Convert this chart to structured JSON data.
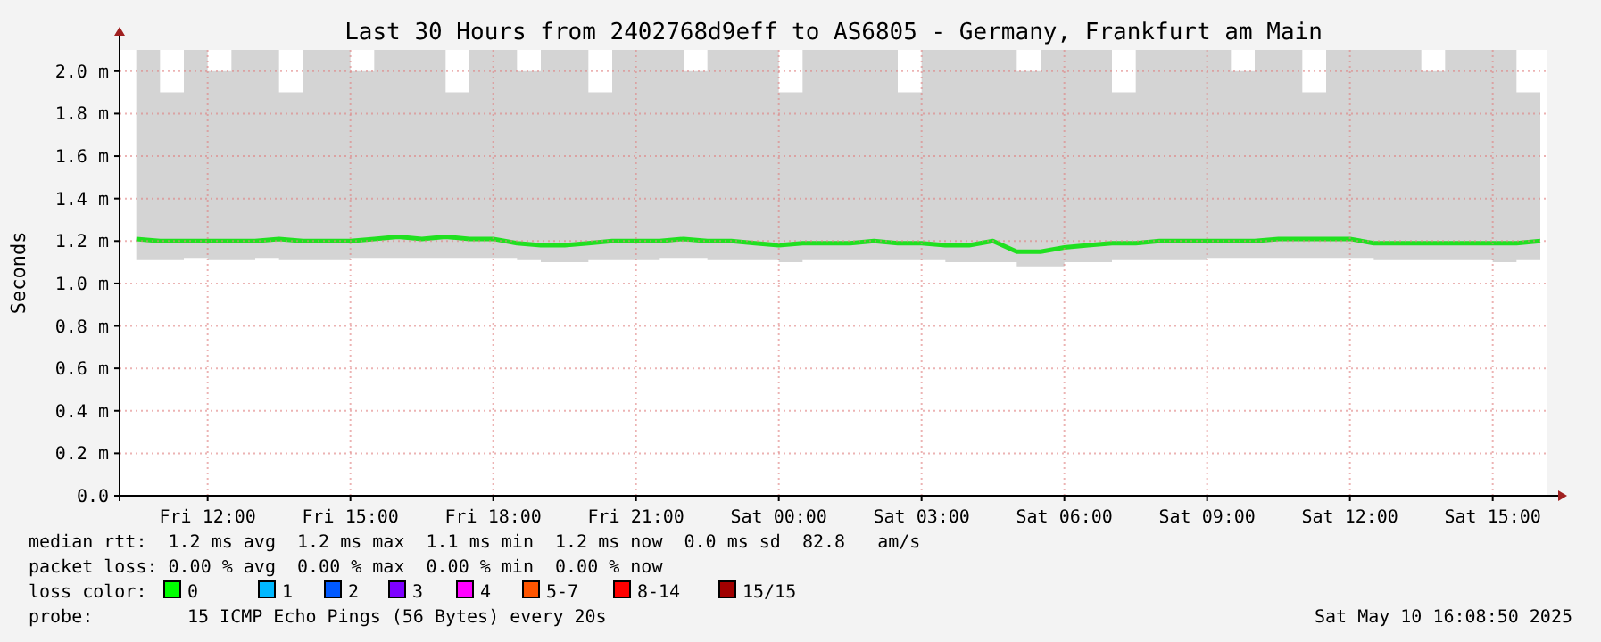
{
  "chart_data": {
    "type": "line",
    "title": "Last 30 Hours from 2402768d9eff to AS6805 - Germany, Frankfurt am Main",
    "ylabel": "Seconds",
    "x": [
      "2025-05-09T10:30",
      "2025-05-09T11:00",
      "2025-05-09T11:30",
      "2025-05-09T12:00",
      "2025-05-09T12:30",
      "2025-05-09T13:00",
      "2025-05-09T13:30",
      "2025-05-09T14:00",
      "2025-05-09T14:30",
      "2025-05-09T15:00",
      "2025-05-09T15:30",
      "2025-05-09T16:00",
      "2025-05-09T16:30",
      "2025-05-09T17:00",
      "2025-05-09T17:30",
      "2025-05-09T18:00",
      "2025-05-09T18:30",
      "2025-05-09T19:00",
      "2025-05-09T19:30",
      "2025-05-09T20:00",
      "2025-05-09T20:30",
      "2025-05-09T21:00",
      "2025-05-09T21:30",
      "2025-05-09T22:00",
      "2025-05-09T22:30",
      "2025-05-09T23:00",
      "2025-05-09T23:30",
      "2025-05-10T00:00",
      "2025-05-10T00:30",
      "2025-05-10T01:00",
      "2025-05-10T01:30",
      "2025-05-10T02:00",
      "2025-05-10T02:30",
      "2025-05-10T03:00",
      "2025-05-10T03:30",
      "2025-05-10T04:00",
      "2025-05-10T04:30",
      "2025-05-10T05:00",
      "2025-05-10T05:30",
      "2025-05-10T06:00",
      "2025-05-10T06:30",
      "2025-05-10T07:00",
      "2025-05-10T07:30",
      "2025-05-10T08:00",
      "2025-05-10T08:30",
      "2025-05-10T09:00",
      "2025-05-10T09:30",
      "2025-05-10T10:00",
      "2025-05-10T10:30",
      "2025-05-10T11:00",
      "2025-05-10T11:30",
      "2025-05-10T12:00",
      "2025-05-10T12:30",
      "2025-05-10T13:00",
      "2025-05-10T13:30",
      "2025-05-10T14:00",
      "2025-05-10T14:30",
      "2025-05-10T15:00",
      "2025-05-10T15:30",
      "2025-05-10T16:00"
    ],
    "series": [
      {
        "color": "#20e020",
        "values": [
          1.21,
          1.2,
          1.2,
          1.2,
          1.2,
          1.2,
          1.21,
          1.2,
          1.2,
          1.2,
          1.21,
          1.22,
          1.21,
          1.22,
          1.21,
          1.21,
          1.19,
          1.18,
          1.18,
          1.19,
          1.2,
          1.2,
          1.2,
          1.21,
          1.2,
          1.2,
          1.19,
          1.18,
          1.19,
          1.19,
          1.19,
          1.2,
          1.19,
          1.19,
          1.18,
          1.18,
          1.2,
          1.15,
          1.15,
          1.17,
          1.18,
          1.19,
          1.19,
          1.2,
          1.2,
          1.2,
          1.2,
          1.2,
          1.21,
          1.21,
          1.21,
          1.21,
          1.19,
          1.19,
          1.19,
          1.19,
          1.19,
          1.19,
          1.19,
          1.2
        ],
        "lower": [
          1.11,
          1.11,
          1.12,
          1.11,
          1.11,
          1.12,
          1.11,
          1.11,
          1.11,
          1.12,
          1.12,
          1.12,
          1.12,
          1.12,
          1.12,
          1.12,
          1.11,
          1.1,
          1.1,
          1.11,
          1.11,
          1.11,
          1.12,
          1.12,
          1.11,
          1.11,
          1.11,
          1.1,
          1.11,
          1.11,
          1.11,
          1.11,
          1.11,
          1.11,
          1.1,
          1.1,
          1.1,
          1.08,
          1.08,
          1.1,
          1.1,
          1.11,
          1.11,
          1.11,
          1.11,
          1.12,
          1.12,
          1.12,
          1.12,
          1.12,
          1.12,
          1.12,
          1.11,
          1.11,
          1.11,
          1.11,
          1.11,
          1.1,
          1.11,
          1.11
        ],
        "upper": [
          2.1,
          1.9,
          2.1,
          2.0,
          2.1,
          2.1,
          1.9,
          2.1,
          2.1,
          2.0,
          2.1,
          2.1,
          2.1,
          1.9,
          2.1,
          2.1,
          2.0,
          2.1,
          2.1,
          1.9,
          2.1,
          2.1,
          2.1,
          2.0,
          2.1,
          2.1,
          2.1,
          1.9,
          2.1,
          2.1,
          2.1,
          2.1,
          1.9,
          2.1,
          2.1,
          2.1,
          2.1,
          2.0,
          2.1,
          2.1,
          2.1,
          1.9,
          2.1,
          2.1,
          2.1,
          2.1,
          2.0,
          2.1,
          2.1,
          1.9,
          2.1,
          2.1,
          2.1,
          2.1,
          2.0,
          2.1,
          2.1,
          2.1,
          1.9,
          2.1
        ]
      }
    ],
    "xlim": [
      "2025-05-09T10:09",
      "2025-05-10T16:09"
    ],
    "xticks": [
      {
        "value": "2025-05-09T12:00",
        "label": "Fri 12:00"
      },
      {
        "value": "2025-05-09T15:00",
        "label": "Fri 15:00"
      },
      {
        "value": "2025-05-09T18:00",
        "label": "Fri 18:00"
      },
      {
        "value": "2025-05-09T21:00",
        "label": "Fri 21:00"
      },
      {
        "value": "2025-05-10T00:00",
        "label": "Sat 00:00"
      },
      {
        "value": "2025-05-10T03:00",
        "label": "Sat 03:00"
      },
      {
        "value": "2025-05-10T06:00",
        "label": "Sat 06:00"
      },
      {
        "value": "2025-05-10T09:00",
        "label": "Sat 09:00"
      },
      {
        "value": "2025-05-10T12:00",
        "label": "Sat 12:00"
      },
      {
        "value": "2025-05-10T15:00",
        "label": "Sat 15:00"
      }
    ],
    "ylim": [
      0,
      2.1
    ],
    "yticks": [
      {
        "value": 0,
        "label": "0.0"
      },
      {
        "value": 0.2,
        "label": "0.2 m"
      },
      {
        "value": 0.4,
        "label": "0.4 m"
      },
      {
        "value": 0.6,
        "label": "0.6 m"
      },
      {
        "value": 0.8,
        "label": "0.8 m"
      },
      {
        "value": 1.0,
        "label": "1.0 m"
      },
      {
        "value": 1.2,
        "label": "1.2 m"
      },
      {
        "value": 1.4,
        "label": "1.4 m"
      },
      {
        "value": 1.6,
        "label": "1.6 m"
      },
      {
        "value": 1.8,
        "label": "1.8 m"
      },
      {
        "value": 2.0,
        "label": "2.0 m"
      }
    ],
    "grid": true,
    "annotations": [
      "median rtt:  1.2 ms avg  1.2 ms max  1.1 ms min  1.2 ms now  0.0 ms sd  82.8   am/s",
      "packet loss: 0.00 % avg  0.00 % max  0.00 % min  0.00 % now",
      "loss color:",
      "0",
      "1",
      "2",
      "3",
      "4",
      "5-7",
      "8-14",
      "15/15",
      "probe:",
      "15 ICMP Echo Pings (56 Bytes) every 20s",
      "Sat May 10 16:08:50 2025"
    ]
  }
}
